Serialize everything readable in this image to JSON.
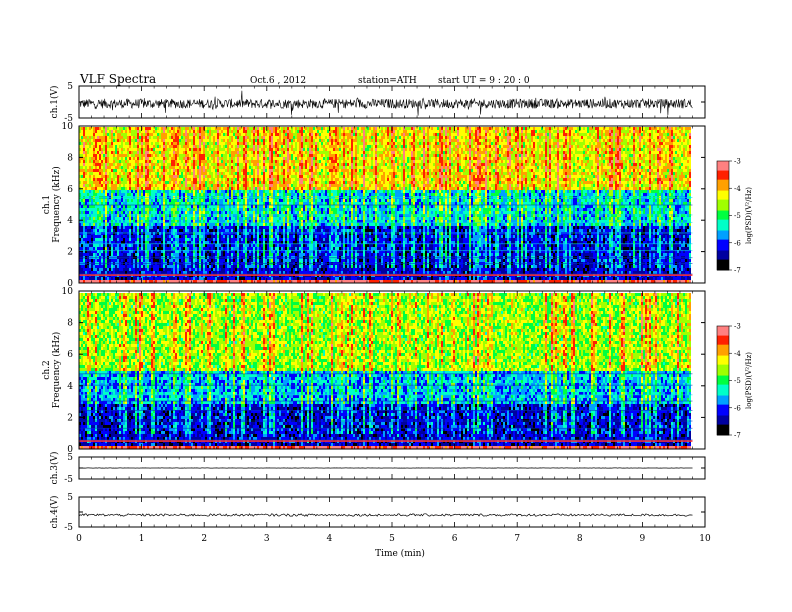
{
  "header": {
    "title": "VLF  Spectra",
    "date": "Oct.6  , 2012",
    "station": "station=ATH",
    "start": "start  UT  =   9  : 20 : 0"
  },
  "chart_data": [
    {
      "type": "line",
      "name": "ch1-waveform",
      "ylabel": "ch.1(V)",
      "yticks": [
        "5",
        "-5"
      ],
      "ylim": [
        -5,
        5
      ],
      "xlim": [
        0,
        10
      ],
      "trace_mean": -0.5,
      "trace_amplitude": 1.5,
      "trace_end": 9.8
    },
    {
      "type": "heatmap",
      "name": "ch1-spectrogram",
      "ylabel": "ch.1",
      "ylabel2": "Frequency  (kHz)",
      "yticks": [
        "0",
        "2",
        "4",
        "6",
        "8",
        "10"
      ],
      "ylim": [
        0,
        10
      ],
      "xlim": [
        0,
        10
      ],
      "colorbar": {
        "label": "log(PSD)(V²/Hz)",
        "ticks": [
          "-3",
          "-4",
          "-5",
          "-6",
          "-7"
        ],
        "range": [
          -7,
          -3
        ]
      },
      "bands_kHz_approx_logPSD": [
        {
          "from": 0,
          "to": 0.5,
          "value": -6.4
        },
        {
          "from": 0.5,
          "to": 3.8,
          "value": -6.3
        },
        {
          "from": 3.8,
          "to": 6.0,
          "value": -5.6
        },
        {
          "from": 6.0,
          "to": 10,
          "value": -4.4
        }
      ]
    },
    {
      "type": "heatmap",
      "name": "ch2-spectrogram",
      "ylabel": "ch.2",
      "ylabel2": "Frequency  (kHz)",
      "yticks": [
        "0",
        "2",
        "4",
        "6",
        "8",
        "10"
      ],
      "ylim": [
        0,
        10
      ],
      "xlim": [
        0,
        10
      ],
      "colorbar": {
        "label": "log(PSD)(V²/Hz)",
        "ticks": [
          "-3",
          "-4",
          "-5",
          "-6",
          "-7"
        ],
        "range": [
          -7,
          -3
        ]
      },
      "bands_kHz_approx_logPSD": [
        {
          "from": 0,
          "to": 0.5,
          "value": -6.4
        },
        {
          "from": 0.5,
          "to": 3.0,
          "value": -6.3
        },
        {
          "from": 3.0,
          "to": 5.0,
          "value": -5.7
        },
        {
          "from": 5.0,
          "to": 10,
          "value": -4.7
        }
      ]
    },
    {
      "type": "line",
      "name": "ch3-waveform",
      "ylabel": "ch.3(V)",
      "yticks": [
        "5",
        "-5"
      ],
      "ylim": [
        -5,
        5
      ],
      "xlim": [
        0,
        10
      ],
      "trace_mean": 0.0,
      "trace_amplitude": 0.05,
      "trace_end": 9.8
    },
    {
      "type": "line",
      "name": "ch4-waveform",
      "ylabel": "ch.4(V)",
      "yticks": [
        "5",
        "-5"
      ],
      "ylim": [
        -5,
        5
      ],
      "xlim": [
        0,
        10
      ],
      "trace_mean": -1.0,
      "trace_amplitude": 0.4,
      "trace_end": 9.8
    }
  ],
  "xaxis": {
    "label": "Time  (min)",
    "ticks": [
      "0",
      "1",
      "2",
      "3",
      "4",
      "5",
      "6",
      "7",
      "8",
      "9",
      "10"
    ]
  },
  "colors": {
    "colormap": [
      "#000000",
      "#0000a0",
      "#0000ff",
      "#00a0ff",
      "#00ffc8",
      "#00ff40",
      "#a0ff00",
      "#ffff00",
      "#ffa000",
      "#ff2000",
      "#ff8080",
      "#ffffff"
    ]
  }
}
